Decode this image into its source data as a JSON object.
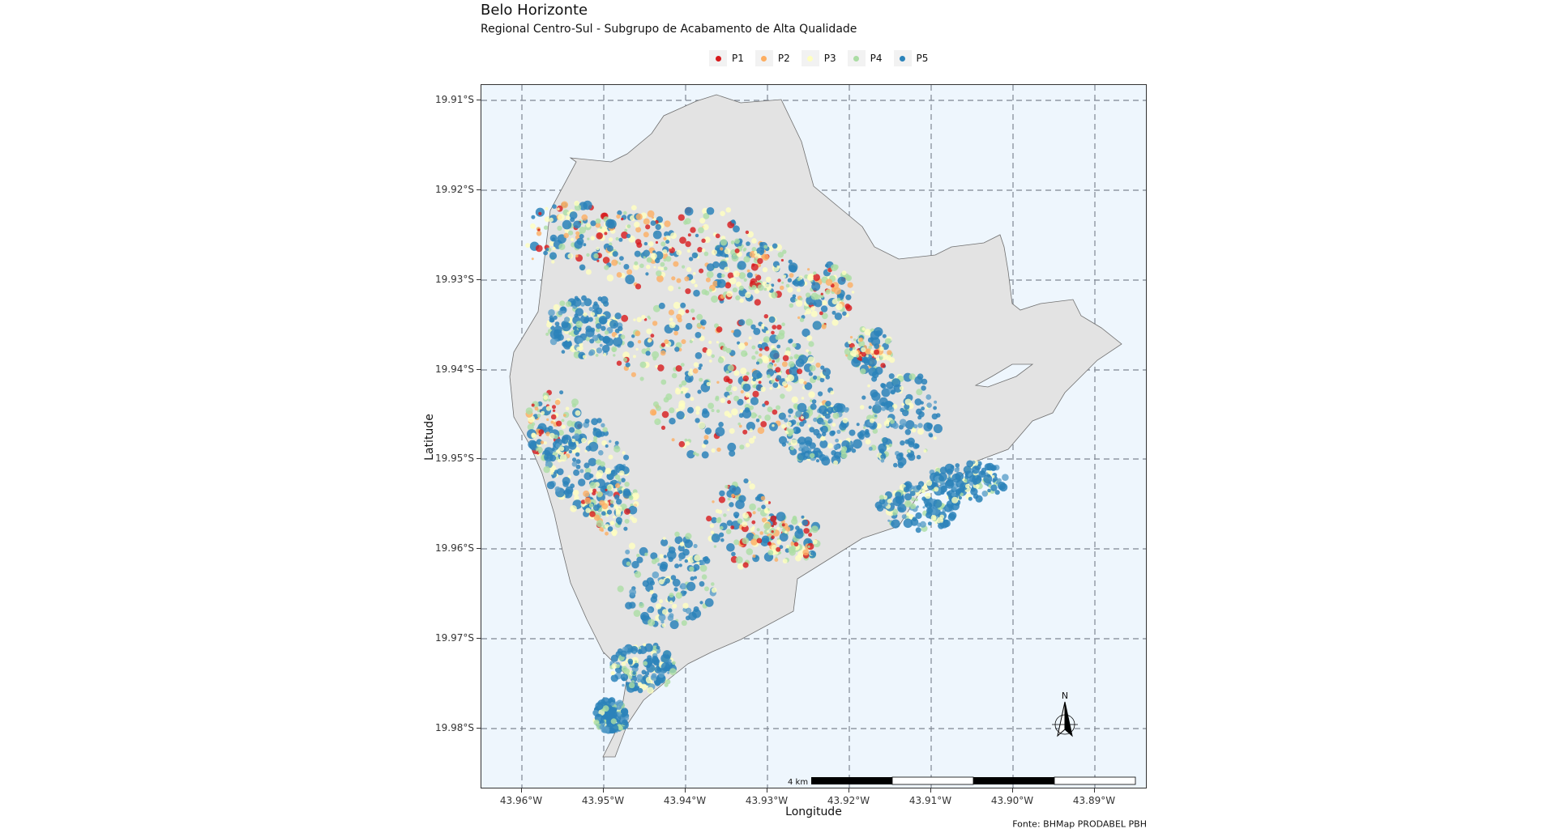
{
  "title": "Belo Horizonte",
  "subtitle": "Regional Centro-Sul - Subgrupo de Acabamento de Alta Qualidade",
  "legend": [
    {
      "label": "P1",
      "color": "#d7191c"
    },
    {
      "label": "P2",
      "color": "#fdae61"
    },
    {
      "label": "P3",
      "color": "#ffffbf"
    },
    {
      "label": "P4",
      "color": "#abdda4"
    },
    {
      "label": "P5",
      "color": "#2b83ba"
    }
  ],
  "axes": {
    "xlabel": "Longitude",
    "ylabel": "Latitude",
    "x_ticks": [
      "43.96°W",
      "43.95°W",
      "43.94°W",
      "43.93°W",
      "43.92°W",
      "43.91°W",
      "43.90°W",
      "43.89°W"
    ],
    "y_ticks": [
      "19.91°S",
      "19.92°S",
      "19.93°S",
      "19.94°S",
      "19.95°S",
      "19.96°S",
      "19.97°S",
      "19.98°S"
    ],
    "grid": "dashed"
  },
  "scale_bar": {
    "label": "4 km"
  },
  "north_arrow": {
    "label": "N"
  },
  "caption": "Fonte: BHMap PRODABEL PBH",
  "colors": {
    "panel_background": "#eef6fd",
    "region_fill": "#e3e3e3",
    "grid": "#7f8793"
  }
}
